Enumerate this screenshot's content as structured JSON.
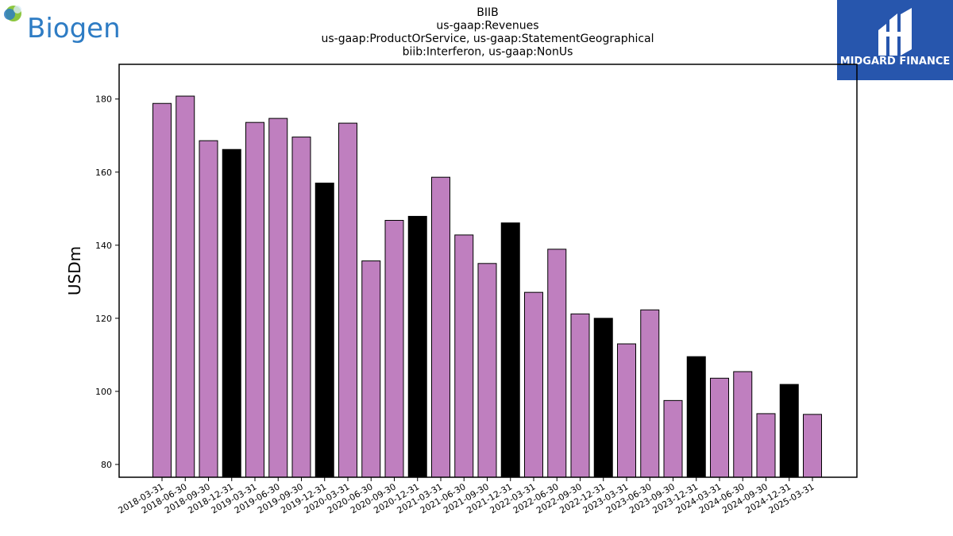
{
  "logos": {
    "company": "Biogen",
    "publisher": "MIDGARD FINANCE"
  },
  "colors": {
    "bar_default": "#bf7fbf",
    "bar_q4": "#000000",
    "publisher_bg": "#2756ad",
    "company_blue": "#2e7cc4"
  },
  "chart_data": {
    "type": "bar",
    "title": [
      "BIIB",
      "us-gaap:Revenues",
      "us-gaap:ProductOrService, us-gaap:StatementGeographical",
      "biib:Interferon, us-gaap:NonUs"
    ],
    "xlabel": "",
    "ylabel": "USDm",
    "ylim": [
      76.5,
      189.5
    ],
    "yticks": [
      80,
      100,
      120,
      140,
      160,
      180
    ],
    "grid": false,
    "categories": [
      "2018-03-31",
      "2018-06-30",
      "2018-09-30",
      "2018-12-31",
      "2019-03-31",
      "2019-06-30",
      "2019-09-30",
      "2019-12-31",
      "2020-03-31",
      "2020-06-30",
      "2020-09-30",
      "2020-12-31",
      "2021-03-31",
      "2021-06-30",
      "2021-09-30",
      "2021-12-31",
      "2022-03-31",
      "2022-06-30",
      "2022-09-30",
      "2022-12-31",
      "2023-03-31",
      "2023-06-30",
      "2023-09-30",
      "2023-12-31",
      "2024-03-31",
      "2024-06-30",
      "2024-09-30",
      "2024-12-31",
      "2025-03-31"
    ],
    "values": [
      178.8,
      180.8,
      168.6,
      166.2,
      173.6,
      174.7,
      169.6,
      157.0,
      173.4,
      135.7,
      146.8,
      147.9,
      158.6,
      142.8,
      135.0,
      146.1,
      127.1,
      138.9,
      121.2,
      120.0,
      113.0,
      122.3,
      97.5,
      109.5,
      103.6,
      105.4,
      93.9,
      101.9,
      93.7
    ],
    "highlight": [
      false,
      false,
      false,
      true,
      false,
      false,
      false,
      true,
      false,
      false,
      false,
      true,
      false,
      false,
      false,
      true,
      false,
      false,
      false,
      true,
      false,
      false,
      false,
      true,
      false,
      false,
      false,
      true,
      false
    ]
  }
}
